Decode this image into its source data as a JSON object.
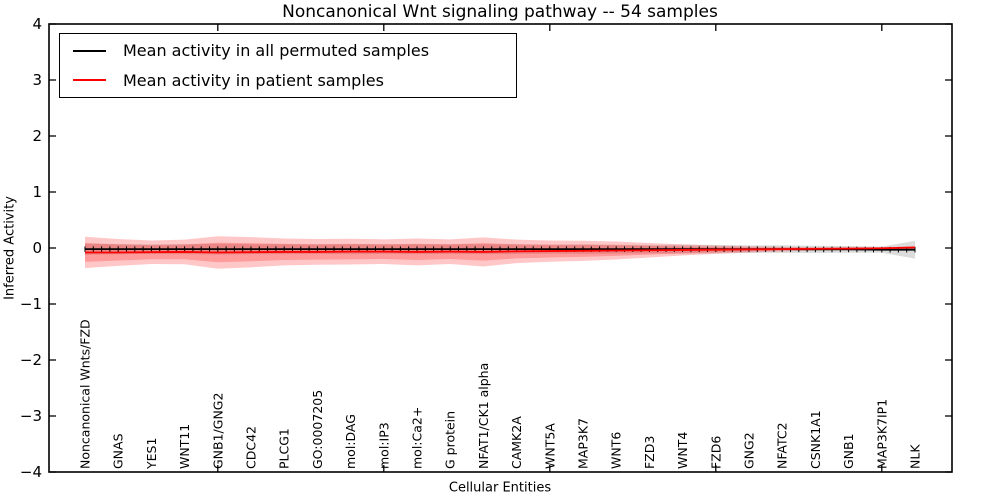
{
  "chart_data": {
    "type": "line",
    "title": "Noncanonical Wnt signaling pathway -- 54 samples",
    "xlabel": "Cellular Entities",
    "ylabel": "Inferred Activity",
    "ylim": [
      -4,
      4
    ],
    "yticks": [
      4,
      3,
      2,
      1,
      0,
      -1,
      -2,
      -3,
      -4
    ],
    "x_major_tick_indices": [
      4,
      9,
      14,
      19,
      24
    ],
    "grid": false,
    "legend_position": "upper left",
    "categories": [
      "Noncanonical Wnts/FZD",
      "GNAS",
      "YES1",
      "WNT11",
      "GNB1/GNG2",
      "CDC42",
      "PLCG1",
      "GO:0007205",
      "mol:DAG",
      "mol:IP3",
      "mol:Ca2+",
      "G protein",
      "NFAT1/CK1 alpha",
      "CAMK2A",
      "WNT5A",
      "MAP3K7",
      "WNT6",
      "FZD3",
      "WNT4",
      "FZD6",
      "GNG2",
      "NFATC2",
      "CSNK1A1",
      "GNB1",
      "MAP3K7IP1",
      "NLK"
    ],
    "series": [
      {
        "name": "Mean activity in all permuted samples",
        "color": "#000000",
        "marker": "plus-ticks",
        "band_color": "rgba(128,128,128,0.28)",
        "values": [
          -0.02,
          -0.02,
          -0.02,
          -0.02,
          -0.02,
          -0.02,
          -0.02,
          -0.02,
          -0.02,
          -0.02,
          -0.02,
          -0.02,
          -0.02,
          -0.02,
          -0.02,
          -0.02,
          -0.02,
          -0.02,
          -0.02,
          -0.02,
          -0.02,
          -0.02,
          -0.025,
          -0.025,
          -0.03,
          -0.03
        ],
        "std": [
          0.1,
          0.09,
          0.085,
          0.09,
          0.095,
          0.09,
          0.09,
          0.085,
          0.09,
          0.085,
          0.09,
          0.085,
          0.09,
          0.085,
          0.08,
          0.085,
          0.08,
          0.075,
          0.08,
          0.075,
          0.07,
          0.07,
          0.065,
          0.06,
          0.055,
          0.16
        ]
      },
      {
        "name": "Mean activity in patient samples",
        "color": "#ff0000",
        "marker": "none",
        "band_color": "rgba(255,0,0,0.22)",
        "inner_band_scale": 0.6,
        "values": [
          -0.08,
          -0.08,
          -0.075,
          -0.07,
          -0.08,
          -0.075,
          -0.07,
          -0.07,
          -0.065,
          -0.065,
          -0.07,
          -0.065,
          -0.07,
          -0.06,
          -0.055,
          -0.05,
          -0.045,
          -0.04,
          -0.035,
          -0.03,
          -0.025,
          -0.02,
          -0.015,
          -0.01,
          -0.005,
          0.01
        ],
        "std": [
          0.28,
          0.24,
          0.21,
          0.22,
          0.29,
          0.27,
          0.24,
          0.23,
          0.23,
          0.22,
          0.24,
          0.22,
          0.26,
          0.21,
          0.19,
          0.18,
          0.16,
          0.13,
          0.1,
          0.075,
          0.055,
          0.04,
          0.03,
          0.02,
          0.015,
          0.02
        ]
      }
    ]
  }
}
